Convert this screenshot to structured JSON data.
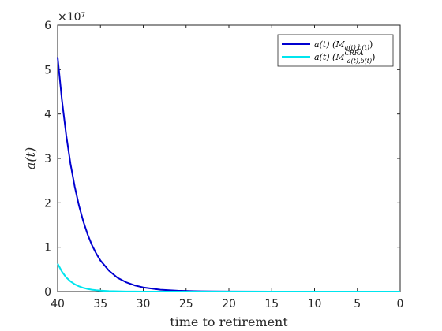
{
  "chart_data": {
    "type": "line",
    "title": "",
    "xlabel": "time to retirement",
    "ylabel": "a(t)",
    "xlim": [
      40,
      0
    ],
    "x_reversed": true,
    "ylim": [
      0,
      6
    ],
    "y_scale_label": "×10⁷",
    "y_multiplier": 10000000,
    "xticks": [
      "40",
      "35",
      "30",
      "25",
      "20",
      "15",
      "10",
      "5",
      "0"
    ],
    "yticks": [
      "0",
      "1",
      "2",
      "3",
      "4",
      "5",
      "6"
    ],
    "grid": false,
    "legend_position": "top-right",
    "x": [
      40,
      39.5,
      39,
      38.5,
      38,
      37.5,
      37,
      36.5,
      36,
      35.5,
      35,
      34,
      33,
      32,
      31,
      30,
      28,
      26,
      24,
      22,
      20,
      15,
      10,
      5,
      0
    ],
    "series": [
      {
        "name": "a(t)  (M_{a(t),b(t)})",
        "legend_main": "a(t)  (M",
        "legend_sub": "a(t),b(t)",
        "legend_sup": "",
        "legend_close": ")",
        "color": "#0000d0",
        "values": [
          5.28,
          4.32,
          3.53,
          2.88,
          2.36,
          1.93,
          1.58,
          1.29,
          1.05,
          0.86,
          0.7,
          0.47,
          0.31,
          0.21,
          0.14,
          0.094,
          0.042,
          0.019,
          0.0085,
          0.0038,
          0.0017,
          0.0003,
          5e-05,
          1e-05,
          0
        ]
      },
      {
        "name": "a(t)  (M^{CRRA}_{a(t),b(t)})",
        "legend_main": "a(t)  (M",
        "legend_sub": "a(t),b(t)",
        "legend_sup": "CRRA",
        "legend_close": ")",
        "color": "#00e5ee",
        "values": [
          0.63,
          0.45,
          0.32,
          0.23,
          0.165,
          0.118,
          0.084,
          0.06,
          0.043,
          0.031,
          0.022,
          0.011,
          0.0057,
          0.0029,
          0.0015,
          0.00075,
          0.0002,
          5e-05,
          1e-05,
          0,
          0,
          0,
          0,
          0,
          0
        ]
      }
    ]
  }
}
